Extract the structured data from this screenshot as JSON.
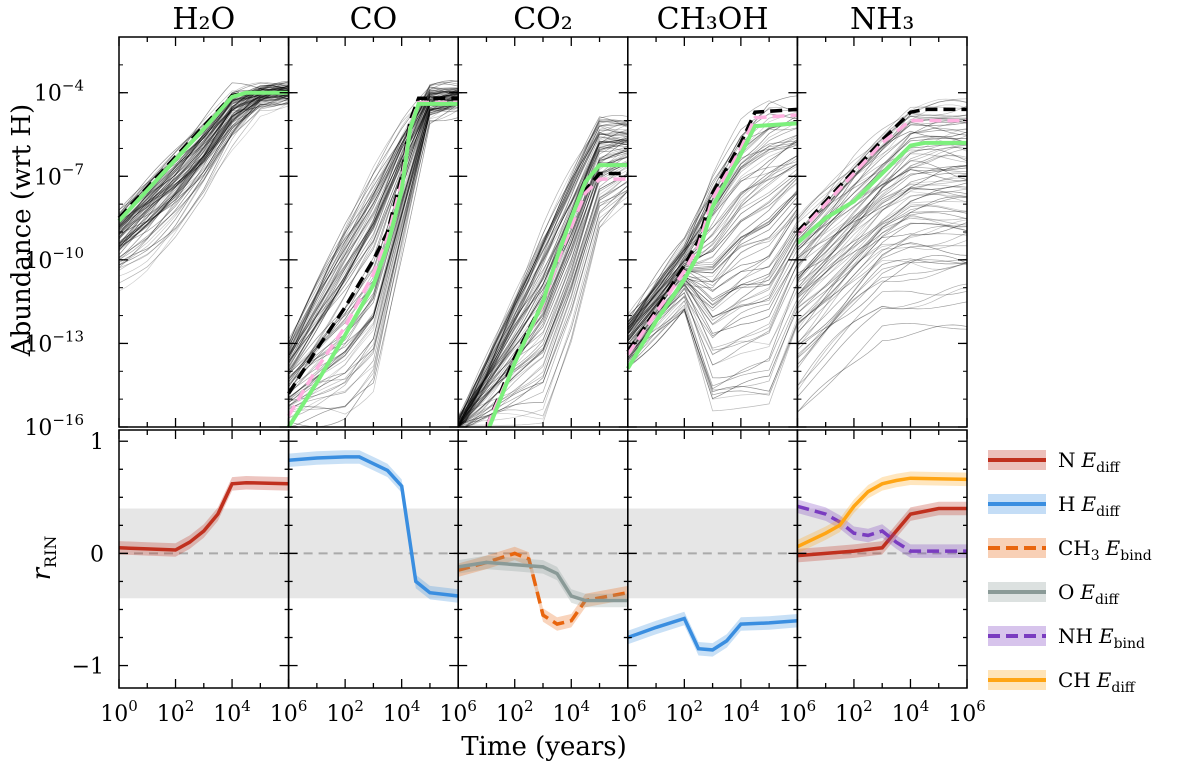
{
  "figure": {
    "xlabel": "Time (years)",
    "ylabel_top": "Abundance (wrt H)",
    "ylabel_bottom_main": "r",
    "ylabel_bottom_sub": "RIN"
  },
  "colors": {
    "ensemble": "#000000",
    "median_dashed": "#000000",
    "pink_dashed": "#ffb0e0",
    "green_line": "#7cf07c",
    "shaded_band": "#e6e6e6",
    "zero_line": "#aaaaaa",
    "N": "#c0301e",
    "H": "#3a8ee0",
    "CH3": "#e8650e",
    "O": "#8a9a97",
    "NH": "#7a3cc0",
    "CH": "#ffa514"
  },
  "chart_data": {
    "type": "line",
    "x_scale": "log",
    "xlim_exponent": [
      0,
      6
    ],
    "top_ylim_exponent": [
      -16,
      -2
    ],
    "bottom_ylim": [
      -1.2,
      1.1
    ],
    "bottom_band": [
      -0.4,
      0.4
    ],
    "x_tick_exponents": [
      0,
      2,
      4,
      6
    ],
    "x_tick_labels": [
      "10",
      "10",
      "10",
      "10"
    ],
    "x_tick_sup": [
      "0",
      "2",
      "4",
      "6"
    ],
    "top_y_tick_exponents": [
      -4,
      -7,
      -10,
      -13,
      -16
    ],
    "top_y_tick_labels": [
      "10",
      "10",
      "10",
      "10",
      "10"
    ],
    "top_y_tick_sup": [
      "−4",
      "−7",
      "−10",
      "−13",
      "−16"
    ],
    "bottom_y_ticks": [
      1,
      0,
      -1
    ],
    "bottom_y_tick_labels": [
      "1",
      "0",
      "−1"
    ],
    "panels": [
      {
        "species": "H₂O",
        "abundance_median_log10": [
          [
            0,
            -8.5
          ],
          [
            1,
            -7.4
          ],
          [
            2,
            -6.3
          ],
          [
            3,
            -5.2
          ],
          [
            4,
            -4.1
          ],
          [
            4.5,
            -4.0
          ],
          [
            6,
            -4.0
          ]
        ],
        "abundance_pink_log10": [
          [
            0,
            -8.6
          ],
          [
            1,
            -7.5
          ],
          [
            2,
            -6.4
          ],
          [
            3,
            -5.3
          ],
          [
            4,
            -4.15
          ],
          [
            4.5,
            -4.0
          ],
          [
            6,
            -4.0
          ]
        ],
        "abundance_green_log10": [
          [
            0,
            -8.6
          ],
          [
            1,
            -7.5
          ],
          [
            2,
            -6.4
          ],
          [
            3,
            -5.3
          ],
          [
            4,
            -4.15
          ],
          [
            4.5,
            -4.0
          ],
          [
            6,
            -4.0
          ]
        ],
        "ensemble_envelope_log10": {
          "x": [
            0,
            1,
            2,
            3,
            4,
            5,
            6
          ],
          "low": [
            -11,
            -10.3,
            -9.3,
            -8.0,
            -6.2,
            -4.6,
            -4.2
          ],
          "high": [
            -8.3,
            -7.2,
            -6.1,
            -5.0,
            -3.9,
            -3.9,
            -3.9
          ]
        },
        "correlations": [
          {
            "parameter": "N",
            "label": "N",
            "energy": "diff",
            "values": [
              [
                0,
                0.05
              ],
              [
                1,
                0.04
              ],
              [
                2,
                0.03
              ],
              [
                2.5,
                0.1
              ],
              [
                3,
                0.2
              ],
              [
                3.5,
                0.35
              ],
              [
                4,
                0.62
              ],
              [
                4.5,
                0.63
              ],
              [
                6,
                0.62
              ]
            ]
          }
        ]
      },
      {
        "species": "CO",
        "abundance_median_log10": [
          [
            0,
            -14.8
          ],
          [
            1,
            -13.2
          ],
          [
            2,
            -11.7
          ],
          [
            3,
            -10.0
          ],
          [
            3.5,
            -9.0
          ],
          [
            4,
            -7.0
          ],
          [
            4.3,
            -5.0
          ],
          [
            4.6,
            -4.2
          ],
          [
            6,
            -4.2
          ]
        ],
        "abundance_pink_log10": [
          [
            0,
            -15.6
          ],
          [
            1,
            -13.9
          ],
          [
            2,
            -12.4
          ],
          [
            3,
            -10.5
          ],
          [
            3.5,
            -9.2
          ],
          [
            4,
            -7.2
          ],
          [
            4.3,
            -5.2
          ],
          [
            4.6,
            -4.35
          ],
          [
            6,
            -4.35
          ]
        ],
        "abundance_green_log10": [
          [
            0,
            -16
          ],
          [
            1,
            -14.4
          ],
          [
            2,
            -12.7
          ],
          [
            3,
            -10.9
          ],
          [
            3.5,
            -9.5
          ],
          [
            4,
            -7.5
          ],
          [
            4.3,
            -5.3
          ],
          [
            4.6,
            -4.4
          ],
          [
            6,
            -4.4
          ]
        ],
        "ensemble_envelope_log10": {
          "x": [
            0,
            1,
            2,
            3,
            4,
            5,
            6
          ],
          "low": [
            -16,
            -16,
            -16,
            -15,
            -10,
            -5.0,
            -4.6
          ],
          "high": [
            -13.0,
            -10.8,
            -8.7,
            -6.8,
            -5.2,
            -3.9,
            -3.9
          ]
        },
        "correlations": [
          {
            "parameter": "H",
            "label": "H",
            "energy": "diff",
            "values": [
              [
                0,
                0.83
              ],
              [
                1,
                0.85
              ],
              [
                2,
                0.86
              ],
              [
                2.5,
                0.86
              ],
              [
                3,
                0.8
              ],
              [
                3.5,
                0.74
              ],
              [
                4,
                0.6
              ],
              [
                4.5,
                -0.25
              ],
              [
                5,
                -0.35
              ],
              [
                6,
                -0.38
              ]
            ]
          }
        ]
      },
      {
        "species": "CO₂",
        "abundance_median_log10": [
          [
            1,
            -16
          ],
          [
            2,
            -13.5
          ],
          [
            3,
            -11.5
          ],
          [
            3.5,
            -10.0
          ],
          [
            4,
            -8.7
          ],
          [
            4.5,
            -7.5
          ],
          [
            5,
            -6.9
          ],
          [
            6,
            -6.9
          ]
        ],
        "abundance_pink_log10": [
          [
            1,
            -16
          ],
          [
            2,
            -13.7
          ],
          [
            3,
            -11.6
          ],
          [
            3.5,
            -10.1
          ],
          [
            4,
            -8.8
          ],
          [
            4.5,
            -7.6
          ],
          [
            5,
            -7.1
          ],
          [
            6,
            -7.1
          ]
        ],
        "abundance_green_log10": [
          [
            1.1,
            -16
          ],
          [
            2,
            -13.7
          ],
          [
            3,
            -11.5
          ],
          [
            3.5,
            -9.9
          ],
          [
            4,
            -8.5
          ],
          [
            4.5,
            -7.2
          ],
          [
            5,
            -6.6
          ],
          [
            6,
            -6.6
          ]
        ],
        "ensemble_envelope_log10": {
          "x": [
            0,
            1,
            2,
            3,
            4,
            5,
            6
          ],
          "low": [
            -16,
            -16,
            -16,
            -16,
            -13,
            -9,
            -8
          ],
          "high": [
            -16,
            -13.7,
            -11.3,
            -9.0,
            -7.0,
            -5.1,
            -5.1
          ]
        },
        "correlations": [
          {
            "parameter": "CH3",
            "label": "CH",
            "label_sub": "3",
            "energy": "bind",
            "values": [
              [
                0,
                -0.15
              ],
              [
                1,
                -0.08
              ],
              [
                2,
                0.0
              ],
              [
                2.5,
                -0.05
              ],
              [
                3,
                -0.55
              ],
              [
                3.5,
                -0.63
              ],
              [
                4,
                -0.6
              ],
              [
                4.5,
                -0.42
              ],
              [
                6,
                -0.35
              ]
            ]
          },
          {
            "parameter": "O",
            "label": "O",
            "energy": "diff",
            "values": [
              [
                0,
                -0.12
              ],
              [
                1,
                -0.08
              ],
              [
                2,
                -0.1
              ],
              [
                3,
                -0.12
              ],
              [
                3.5,
                -0.18
              ],
              [
                4,
                -0.38
              ],
              [
                4.5,
                -0.42
              ],
              [
                6,
                -0.42
              ]
            ]
          }
        ]
      },
      {
        "species": "CH₃OH",
        "abundance_median_log10": [
          [
            0,
            -13.3
          ],
          [
            1,
            -11.8
          ],
          [
            2,
            -10.2
          ],
          [
            2.5,
            -9.3
          ],
          [
            3,
            -7.6
          ],
          [
            4,
            -5.8
          ],
          [
            4.5,
            -4.7
          ],
          [
            6,
            -4.6
          ]
        ],
        "abundance_pink_log10": [
          [
            0,
            -13.4
          ],
          [
            1,
            -11.9
          ],
          [
            2,
            -10.4
          ],
          [
            2.5,
            -9.5
          ],
          [
            3,
            -7.8
          ],
          [
            4,
            -6.0
          ],
          [
            4.5,
            -4.9
          ],
          [
            6,
            -4.8
          ]
        ],
        "abundance_green_log10": [
          [
            0,
            -13.9
          ],
          [
            1,
            -12.2
          ],
          [
            2,
            -10.7
          ],
          [
            2.5,
            -9.8
          ],
          [
            3,
            -8.1
          ],
          [
            4,
            -6.2
          ],
          [
            4.5,
            -5.2
          ],
          [
            6,
            -5.1
          ]
        ],
        "ensemble_envelope_log10": {
          "x": [
            0,
            1,
            2,
            3,
            4,
            5,
            6
          ],
          "low": [
            -14,
            -13,
            -12,
            -16,
            -16,
            -16,
            -13
          ],
          "high": [
            -12.2,
            -10.8,
            -9.4,
            -7.0,
            -5.3,
            -4.4,
            -4.4
          ]
        },
        "correlations": [
          {
            "parameter": "H",
            "label": "H",
            "energy": "diff",
            "values": [
              [
                0,
                -0.75
              ],
              [
                1,
                -0.66
              ],
              [
                2,
                -0.58
              ],
              [
                2.5,
                -0.85
              ],
              [
                3,
                -0.86
              ],
              [
                3.5,
                -0.78
              ],
              [
                4,
                -0.63
              ],
              [
                5,
                -0.62
              ],
              [
                6,
                -0.6
              ]
            ]
          }
        ]
      },
      {
        "species": "NH₃",
        "abundance_median_log10": [
          [
            0,
            -9.0
          ],
          [
            1,
            -7.9
          ],
          [
            2,
            -6.8
          ],
          [
            3,
            -5.7
          ],
          [
            4,
            -4.7
          ],
          [
            4.5,
            -4.6
          ],
          [
            6,
            -4.6
          ]
        ],
        "abundance_pink_log10": [
          [
            0,
            -9.1
          ],
          [
            1,
            -8.0
          ],
          [
            2,
            -6.9
          ],
          [
            3,
            -5.8
          ],
          [
            4,
            -5.0
          ],
          [
            4.5,
            -5.0
          ],
          [
            6,
            -5.0
          ]
        ],
        "abundance_green_log10": [
          [
            0,
            -9.4
          ],
          [
            1,
            -8.5
          ],
          [
            2,
            -7.9
          ],
          [
            3,
            -6.9
          ],
          [
            4,
            -5.9
          ],
          [
            4.5,
            -5.8
          ],
          [
            6,
            -5.8
          ]
        ],
        "ensemble_envelope_log10": {
          "x": [
            0,
            1,
            2,
            3,
            4,
            5,
            6
          ],
          "low": [
            -16,
            -15,
            -14,
            -13,
            -13,
            -13,
            -13
          ],
          "high": [
            -8.6,
            -7.6,
            -6.5,
            -5.5,
            -4.5,
            -4.4,
            -4.4
          ]
        },
        "correlations": [
          {
            "parameter": "N",
            "label": "N",
            "energy": "diff",
            "values": [
              [
                0,
                -0.02
              ],
              [
                1,
                0.0
              ],
              [
                2,
                0.02
              ],
              [
                3,
                0.05
              ],
              [
                3.5,
                0.2
              ],
              [
                4,
                0.35
              ],
              [
                5,
                0.4
              ],
              [
                6,
                0.4
              ]
            ]
          },
          {
            "parameter": "NH",
            "label": "NH",
            "energy": "bind",
            "values": [
              [
                0,
                0.42
              ],
              [
                1,
                0.35
              ],
              [
                1.5,
                0.28
              ],
              [
                2,
                0.18
              ],
              [
                2.5,
                0.16
              ],
              [
                3,
                0.2
              ],
              [
                3.5,
                0.1
              ],
              [
                4,
                0.02
              ],
              [
                6,
                0.02
              ]
            ]
          },
          {
            "parameter": "CH",
            "label": "CH",
            "energy": "diff",
            "values": [
              [
                0,
                0.06
              ],
              [
                1,
                0.18
              ],
              [
                1.5,
                0.25
              ],
              [
                2,
                0.42
              ],
              [
                2.5,
                0.55
              ],
              [
                3,
                0.62
              ],
              [
                3.5,
                0.65
              ],
              [
                4,
                0.67
              ],
              [
                6,
                0.66
              ]
            ]
          }
        ]
      }
    ],
    "legend": [
      {
        "parameter": "N",
        "label": "N",
        "label_sub": "",
        "energy": "diff",
        "style": "solid"
      },
      {
        "parameter": "H",
        "label": "H",
        "label_sub": "",
        "energy": "diff",
        "style": "solid"
      },
      {
        "parameter": "CH3",
        "label": "CH",
        "label_sub": "3",
        "energy": "bind",
        "style": "dashed"
      },
      {
        "parameter": "O",
        "label": "O",
        "label_sub": "",
        "energy": "diff",
        "style": "solid"
      },
      {
        "parameter": "NH",
        "label": "NH",
        "label_sub": "",
        "energy": "bind",
        "style": "dashed"
      },
      {
        "parameter": "CH",
        "label": "CH",
        "label_sub": "",
        "energy": "diff",
        "style": "solid"
      }
    ],
    "legend_energy_symbol": "E",
    "legend_location": "right"
  }
}
